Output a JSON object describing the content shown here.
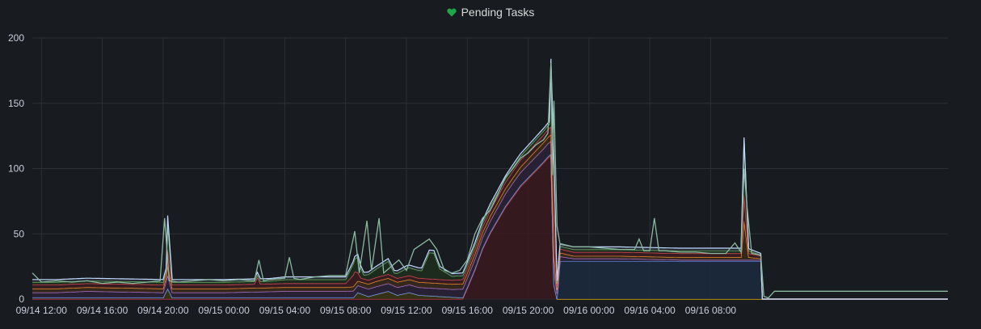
{
  "panel": {
    "title": "Pending Tasks",
    "status_icon": "heart-icon",
    "status_color": "#1fa64a"
  },
  "chart_data": {
    "type": "area",
    "title": "Pending Tasks",
    "xlabel": "",
    "ylabel": "",
    "ylim": [
      0,
      200
    ],
    "yticks": [
      0,
      50,
      100,
      150,
      200
    ],
    "xlim_hours": [
      11.4,
      71.6
    ],
    "xticks": [
      {
        "h": 12,
        "label": "09/14 12:00"
      },
      {
        "h": 16,
        "label": "09/14 16:00"
      },
      {
        "h": 20,
        "label": "09/14 20:00"
      },
      {
        "h": 24,
        "label": "09/15 00:00"
      },
      {
        "h": 28,
        "label": "09/15 04:00"
      },
      {
        "h": 32,
        "label": "09/15 08:00"
      },
      {
        "h": 36,
        "label": "09/15 12:00"
      },
      {
        "h": 40,
        "label": "09/15 16:00"
      },
      {
        "h": 44,
        "label": "09/15 20:00"
      },
      {
        "h": 48,
        "label": "09/16 00:00"
      },
      {
        "h": 52,
        "label": "09/16 04:00"
      },
      {
        "h": 56,
        "label": "09/16 08:00"
      }
    ],
    "grid": true,
    "stacked": true,
    "legend": "none",
    "series": [
      {
        "color": "#c4314b",
        "fill": "#3a1a20",
        "points": [
          [
            11.4,
            0
          ],
          [
            39.7,
            0
          ],
          [
            40.0,
            8
          ],
          [
            40.5,
            22
          ],
          [
            41.0,
            38
          ],
          [
            41.5,
            50
          ],
          [
            42.0,
            60
          ],
          [
            42.5,
            70
          ],
          [
            43.0,
            78
          ],
          [
            43.5,
            86
          ],
          [
            44.0,
            92
          ],
          [
            44.5,
            98
          ],
          [
            45.0,
            104
          ],
          [
            45.3,
            108
          ],
          [
            45.5,
            110
          ],
          [
            45.7,
            10
          ],
          [
            45.9,
            0
          ],
          [
            71.6,
            0
          ]
        ]
      },
      {
        "color": "#e0b400",
        "fill": "#3a3515",
        "points": [
          [
            11.4,
            1
          ],
          [
            20.0,
            1
          ],
          [
            20.3,
            8
          ],
          [
            20.6,
            1
          ],
          [
            32.5,
            1
          ],
          [
            32.8,
            5
          ],
          [
            33.5,
            2
          ],
          [
            34.8,
            6
          ],
          [
            35.4,
            3
          ],
          [
            36.2,
            5
          ],
          [
            36.8,
            3
          ],
          [
            39.7,
            1
          ],
          [
            45.5,
            1
          ],
          [
            45.7,
            1
          ],
          [
            45.9,
            0
          ],
          [
            71.6,
            0
          ]
        ]
      },
      {
        "color": "#6e9fff",
        "fill": "#1b2a3f",
        "points": [
          [
            11.4,
            0
          ],
          [
            45.9,
            0
          ],
          [
            46.1,
            29
          ],
          [
            50.0,
            29
          ],
          [
            54.0,
            29
          ],
          [
            58.0,
            29
          ],
          [
            59.3,
            29
          ],
          [
            59.4,
            0
          ],
          [
            71.6,
            0
          ]
        ]
      },
      {
        "color": "#b877d9",
        "fill": "#2b2238",
        "points": [
          [
            11.4,
            4
          ],
          [
            13,
            4
          ],
          [
            15,
            5
          ],
          [
            20,
            4
          ],
          [
            20.3,
            10
          ],
          [
            20.6,
            4
          ],
          [
            24,
            4
          ],
          [
            28,
            5
          ],
          [
            32,
            5
          ],
          [
            34,
            6
          ],
          [
            36,
            6
          ],
          [
            39,
            6
          ],
          [
            41,
            8
          ],
          [
            43,
            10
          ],
          [
            45.5,
            10
          ],
          [
            45.7,
            12
          ],
          [
            45.9,
            4
          ],
          [
            47,
            2
          ],
          [
            50,
            2
          ],
          [
            54,
            1
          ],
          [
            58,
            1
          ],
          [
            59.3,
            1
          ],
          [
            59.4,
            0
          ],
          [
            71.6,
            0
          ]
        ]
      },
      {
        "color": "#ff9830",
        "fill": "#3a2a1c",
        "points": [
          [
            11.4,
            3
          ],
          [
            15,
            3
          ],
          [
            20.2,
            3
          ],
          [
            20.3,
            8
          ],
          [
            20.6,
            3
          ],
          [
            24,
            3
          ],
          [
            28,
            3
          ],
          [
            32,
            3
          ],
          [
            34,
            4
          ],
          [
            36,
            4
          ],
          [
            39,
            4
          ],
          [
            41,
            4
          ],
          [
            43,
            4
          ],
          [
            45.5,
            5
          ],
          [
            45.7,
            10
          ],
          [
            45.9,
            3
          ],
          [
            47,
            2
          ],
          [
            50,
            2
          ],
          [
            54,
            2
          ],
          [
            58,
            2
          ],
          [
            58.2,
            30
          ],
          [
            58.5,
            2
          ],
          [
            59.3,
            1
          ],
          [
            59.4,
            0
          ],
          [
            71.6,
            0
          ]
        ]
      },
      {
        "color": "#f2495c",
        "fill": "#3a1c22",
        "points": [
          [
            11.4,
            3
          ],
          [
            20.2,
            3
          ],
          [
            20.3,
            12
          ],
          [
            20.6,
            3
          ],
          [
            26,
            3
          ],
          [
            26.2,
            8
          ],
          [
            26.4,
            3
          ],
          [
            32,
            3
          ],
          [
            32.6,
            10
          ],
          [
            33,
            3
          ],
          [
            39,
            3
          ],
          [
            41,
            4
          ],
          [
            43,
            5
          ],
          [
            45.5,
            6
          ],
          [
            45.7,
            30
          ],
          [
            45.9,
            3
          ],
          [
            47,
            3
          ],
          [
            50,
            3
          ],
          [
            54,
            3
          ],
          [
            58,
            3
          ],
          [
            58.2,
            20
          ],
          [
            58.5,
            3
          ],
          [
            59.3,
            2
          ],
          [
            59.4,
            0
          ],
          [
            71.6,
            0
          ]
        ]
      },
      {
        "color": "#73bf69",
        "fill": "#1f2e1f",
        "points": [
          [
            11.4,
            2
          ],
          [
            16,
            2
          ],
          [
            20.2,
            2
          ],
          [
            20.3,
            20
          ],
          [
            20.6,
            2
          ],
          [
            24,
            2
          ],
          [
            27,
            2
          ],
          [
            28,
            3
          ],
          [
            32,
            3
          ],
          [
            32.8,
            12
          ],
          [
            33.2,
            3
          ],
          [
            34.8,
            10
          ],
          [
            35.2,
            3
          ],
          [
            36,
            6
          ],
          [
            37,
            6
          ],
          [
            37.5,
            20
          ],
          [
            37.8,
            20
          ],
          [
            38.2,
            8
          ],
          [
            39,
            3
          ],
          [
            40,
            3
          ],
          [
            42,
            3
          ],
          [
            45.4,
            3
          ],
          [
            45.5,
            50
          ],
          [
            45.7,
            40
          ],
          [
            45.9,
            2
          ],
          [
            47,
            2
          ],
          [
            50,
            2
          ],
          [
            54,
            2
          ],
          [
            58,
            2
          ],
          [
            58.2,
            42
          ],
          [
            58.5,
            2
          ],
          [
            59.3,
            1
          ],
          [
            59.4,
            0
          ],
          [
            71.6,
            0
          ]
        ]
      },
      {
        "color": "#c0d8ff",
        "fill": "#2a2f38",
        "points": [
          [
            11.4,
            2
          ],
          [
            12,
            2
          ],
          [
            14,
            2
          ],
          [
            20.2,
            2
          ],
          [
            20.3,
            6
          ],
          [
            20.6,
            2
          ],
          [
            24,
            2
          ],
          [
            28,
            2
          ],
          [
            32,
            2
          ],
          [
            34,
            2
          ],
          [
            36,
            2
          ],
          [
            39,
            2
          ],
          [
            41,
            2
          ],
          [
            43,
            2
          ],
          [
            45.5,
            2
          ],
          [
            45.7,
            4
          ],
          [
            45.9,
            2
          ],
          [
            47,
            2
          ],
          [
            50,
            2
          ],
          [
            54,
            2
          ],
          [
            58,
            2
          ],
          [
            59.3,
            1
          ],
          [
            59.4,
            0
          ],
          [
            71.6,
            0
          ]
        ]
      }
    ],
    "total": {
      "color": "#8ab8a0",
      "points": [
        [
          11.4,
          20
        ],
        [
          12,
          13
        ],
        [
          13,
          14
        ],
        [
          14,
          13
        ],
        [
          15,
          14
        ],
        [
          16,
          12
        ],
        [
          17,
          13
        ],
        [
          18,
          12
        ],
        [
          19,
          13
        ],
        [
          19.8,
          14
        ],
        [
          20.1,
          62
        ],
        [
          20.4,
          14
        ],
        [
          21,
          13
        ],
        [
          22,
          14
        ],
        [
          23,
          15
        ],
        [
          24,
          14
        ],
        [
          25,
          15
        ],
        [
          26,
          14
        ],
        [
          26.3,
          30
        ],
        [
          26.6,
          14
        ],
        [
          27,
          15
        ],
        [
          28,
          16
        ],
        [
          28.3,
          32
        ],
        [
          28.6,
          16
        ],
        [
          29,
          15
        ],
        [
          30,
          17
        ],
        [
          31,
          18
        ],
        [
          32,
          18
        ],
        [
          32.6,
          52
        ],
        [
          32.9,
          20
        ],
        [
          33.4,
          60
        ],
        [
          33.7,
          22
        ],
        [
          34.2,
          62
        ],
        [
          34.5,
          20
        ],
        [
          35,
          25
        ],
        [
          35.5,
          30
        ],
        [
          36,
          22
        ],
        [
          36.5,
          38
        ],
        [
          37,
          42
        ],
        [
          37.5,
          46
        ],
        [
          38,
          38
        ],
        [
          38.5,
          22
        ],
        [
          39,
          20
        ],
        [
          39.5,
          22
        ],
        [
          40,
          30
        ],
        [
          40.5,
          50
        ],
        [
          41,
          62
        ],
        [
          41.5,
          68
        ],
        [
          42,
          80
        ],
        [
          42.5,
          93
        ],
        [
          43,
          100
        ],
        [
          43.5,
          108
        ],
        [
          44,
          112
        ],
        [
          44.5,
          118
        ],
        [
          45,
          122
        ],
        [
          45.3,
          127
        ],
        [
          45.5,
          181
        ],
        [
          45.6,
          95
        ],
        [
          45.7,
          152
        ],
        [
          45.9,
          56
        ],
        [
          46.1,
          42
        ],
        [
          47,
          40
        ],
        [
          48,
          40
        ],
        [
          49,
          39
        ],
        [
          50,
          38
        ],
        [
          51,
          38
        ],
        [
          51.3,
          46
        ],
        [
          51.6,
          37
        ],
        [
          52,
          37
        ],
        [
          52.3,
          62
        ],
        [
          52.6,
          37
        ],
        [
          53,
          37
        ],
        [
          54,
          36
        ],
        [
          55,
          36
        ],
        [
          56,
          35
        ],
        [
          57,
          35
        ],
        [
          57.6,
          43
        ],
        [
          58,
          36
        ],
        [
          58.2,
          100
        ],
        [
          58.4,
          70
        ],
        [
          58.7,
          35
        ],
        [
          59.2,
          34
        ],
        [
          59.3,
          33
        ],
        [
          59.5,
          2
        ],
        [
          59.8,
          1
        ],
        [
          60.2,
          6
        ],
        [
          71.6,
          6
        ]
      ]
    }
  }
}
